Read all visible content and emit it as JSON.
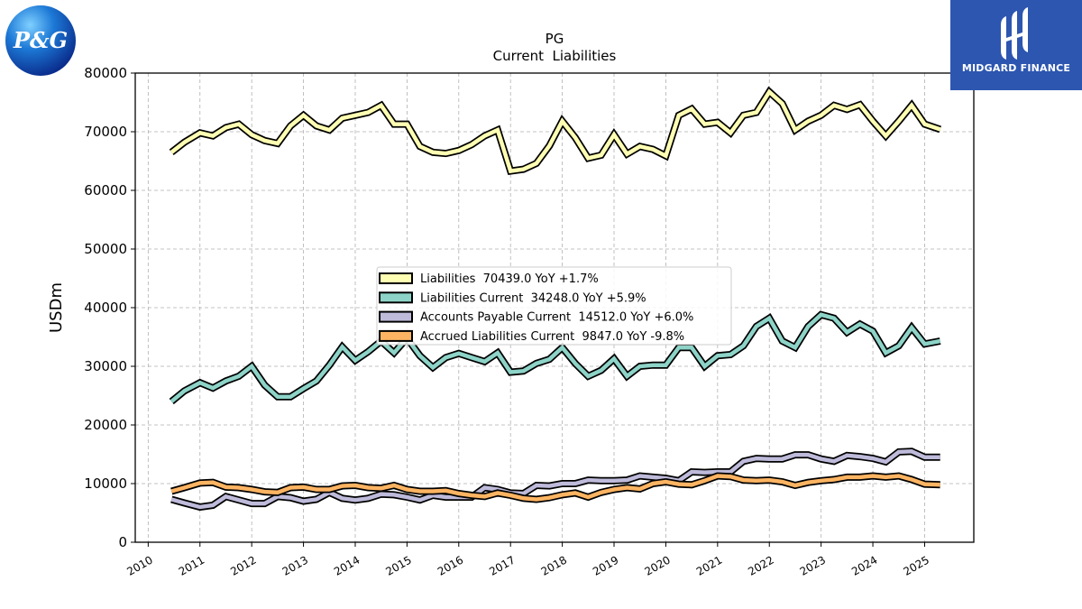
{
  "chart_data": {
    "type": "line",
    "title": "PG",
    "subtitle": "Current  Liabilities",
    "ylabel": "USDm",
    "xlabel": "",
    "ylim": [
      0,
      80000
    ],
    "xlim": [
      2009.75,
      2025.95
    ],
    "yticks": [
      0,
      10000,
      20000,
      30000,
      40000,
      50000,
      60000,
      70000,
      80000
    ],
    "xticks": [
      2010,
      2011,
      2012,
      2013,
      2014,
      2015,
      2016,
      2017,
      2018,
      2019,
      2020,
      2021,
      2022,
      2023,
      2024,
      2025
    ],
    "grid": true,
    "legend_position": "center",
    "x": [
      2010.45,
      2010.7,
      2011.0,
      2011.25,
      2011.5,
      2011.75,
      2012.0,
      2012.25,
      2012.5,
      2012.75,
      2013.0,
      2013.25,
      2013.5,
      2013.75,
      2014.0,
      2014.25,
      2014.5,
      2014.75,
      2015.0,
      2015.25,
      2015.5,
      2015.75,
      2016.0,
      2016.25,
      2016.5,
      2016.75,
      2017.0,
      2017.25,
      2017.5,
      2017.75,
      2018.0,
      2018.25,
      2018.5,
      2018.75,
      2019.0,
      2019.25,
      2019.5,
      2019.75,
      2020.0,
      2020.25,
      2020.5,
      2020.75,
      2021.0,
      2021.25,
      2021.5,
      2021.75,
      2022.0,
      2022.25,
      2022.5,
      2022.75,
      2023.0,
      2023.25,
      2023.5,
      2023.75,
      2024.0,
      2024.25,
      2024.5,
      2024.75,
      2025.0,
      2025.3
    ],
    "series": [
      {
        "name": "Liabilities  70439.0 YoY +1.7%",
        "color": "#ffffb3",
        "values": [
          66500,
          68200,
          69800,
          69300,
          70700,
          71300,
          69500,
          68500,
          68000,
          71000,
          72800,
          71000,
          70300,
          72300,
          72800,
          73300,
          74500,
          71300,
          71300,
          67500,
          66500,
          66300,
          66800,
          67800,
          69300,
          70300,
          63300,
          63600,
          64600,
          67600,
          71800,
          69000,
          65500,
          66000,
          69500,
          66200,
          67500,
          67000,
          65900,
          72800,
          73900,
          71300,
          71600,
          69800,
          72800,
          73300,
          76800,
          74800,
          70300,
          71800,
          72800,
          74500,
          73800,
          74600,
          71800,
          69300,
          71800,
          74500,
          71300,
          70400
        ]
      },
      {
        "name": "Liabilities Current  34248.0 YoY +5.9%",
        "color": "#8dd3c7",
        "values": [
          24000,
          25800,
          27200,
          26300,
          27500,
          28300,
          30000,
          26800,
          24800,
          24800,
          26200,
          27500,
          30200,
          33300,
          31000,
          32500,
          34300,
          32300,
          34800,
          31800,
          29800,
          31500,
          32200,
          31500,
          30800,
          32300,
          29000,
          29200,
          30500,
          31200,
          33200,
          30500,
          28300,
          29300,
          31300,
          28300,
          30000,
          30200,
          30200,
          33200,
          33200,
          30000,
          31800,
          32000,
          33500,
          36800,
          38200,
          34300,
          33200,
          36800,
          38800,
          38200,
          35800,
          37200,
          36000,
          32300,
          33500,
          36600,
          33800,
          34300
        ]
      },
      {
        "name": "Accounts Payable Current  14512.0 YoY +6.0%",
        "color": "#bebada",
        "values": [
          7300,
          6700,
          6000,
          6300,
          7800,
          7200,
          6600,
          6600,
          7800,
          7600,
          7000,
          7300,
          8500,
          7500,
          7200,
          7500,
          8200,
          8100,
          7700,
          7200,
          8000,
          7700,
          7700,
          7700,
          9300,
          9000,
          8400,
          8300,
          9700,
          9600,
          10000,
          10000,
          10600,
          10500,
          10500,
          10600,
          11300,
          11100,
          10900,
          10500,
          12000,
          11900,
          12000,
          12000,
          13800,
          14300,
          14200,
          14200,
          14900,
          14900,
          14200,
          13800,
          14800,
          14600,
          14300,
          13700,
          15400,
          15500,
          14500,
          14500
        ]
      },
      {
        "name": "Accrued Liabilities Current  9847.0 YoY -9.8%",
        "color": "#fdb462",
        "values": [
          8700,
          9300,
          10100,
          10200,
          9400,
          9300,
          9000,
          8600,
          8500,
          9300,
          9400,
          9000,
          9000,
          9600,
          9700,
          9300,
          9200,
          9700,
          9000,
          8700,
          8700,
          8800,
          8300,
          8000,
          7800,
          8400,
          8000,
          7500,
          7300,
          7600,
          8100,
          8400,
          7700,
          8500,
          9000,
          9300,
          9100,
          10000,
          10300,
          9900,
          9800,
          10500,
          11300,
          11200,
          10600,
          10500,
          10600,
          10300,
          9700,
          10200,
          10500,
          10700,
          11100,
          11100,
          11300,
          11100,
          11300,
          10700,
          9900,
          9800
        ]
      }
    ]
  },
  "logos": {
    "left_brand": "P&G",
    "right_brand": "MIDGARD FINANCE"
  }
}
